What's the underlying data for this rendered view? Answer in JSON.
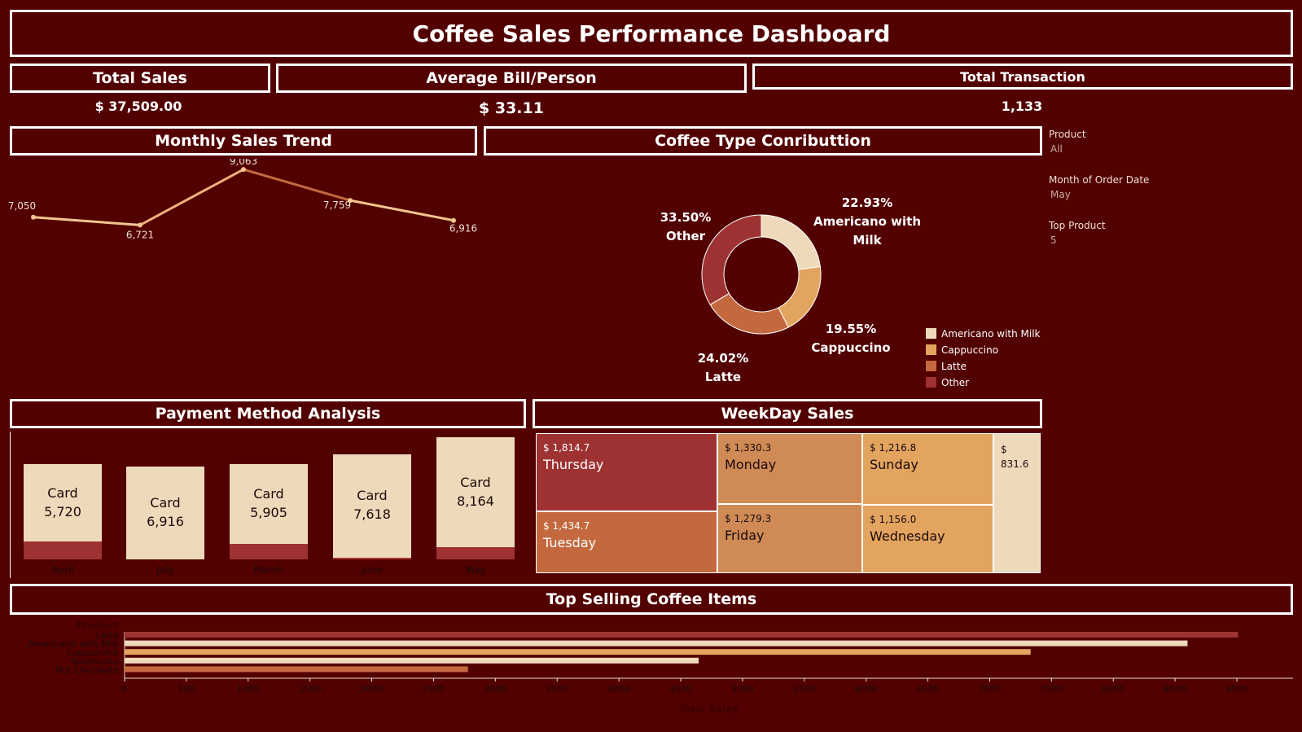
{
  "title": "Coffee Sales Performance Dashboard",
  "kpis": {
    "total_sales_label": "Total Sales",
    "total_sales_value": "$ 37,509.00",
    "avg_bill_label": "Average Bill/Person",
    "avg_bill_value": "$ 33.11",
    "total_txn_label": "Total Transaction",
    "total_txn_value": "1,133"
  },
  "filters": [
    {
      "label": "Product",
      "value": "All"
    },
    {
      "label": "Month of Order Date",
      "value": "May"
    },
    {
      "label": "Top Product",
      "value": "5"
    }
  ],
  "sections": {
    "monthly": "Monthly Sales Trend",
    "coffee_type": "Coffee Type Conributtion",
    "payment": "Payment Method Analysis",
    "weekday": "WeekDay Sales",
    "top_selling": "Top Selling Coffee Items"
  },
  "colors": {
    "background": "#520000",
    "americano_with_milk": "#efd9bb",
    "cappuccino": "#e3a45f",
    "latte": "#c4693f",
    "other": "#9e3232"
  },
  "chart_data": [
    {
      "type": "line",
      "name": "monthly-sales-trend",
      "title": "Monthly Sales Trend",
      "values": [
        7050,
        6721,
        9063,
        7759,
        6916
      ],
      "value_labels": [
        "7,050",
        "6,721",
        "9,063",
        "7,759",
        "6,916"
      ]
    },
    {
      "type": "pie",
      "name": "coffee-type-contribution",
      "title": "Coffee Type Conributtion",
      "slices": [
        {
          "name": "Americano with Milk",
          "value": 22.93,
          "label": "22.93%",
          "color": "#efd9bb"
        },
        {
          "name": "Cappuccino",
          "value": 19.55,
          "label": "19.55%",
          "color": "#e3a45f"
        },
        {
          "name": "Latte",
          "value": 24.02,
          "label": "24.02%",
          "color": "#c4693f"
        },
        {
          "name": "Other",
          "value": 33.5,
          "label": "33.50%",
          "color": "#9e3232"
        }
      ],
      "legend": [
        "Americano with Milk",
        "Cappuccino",
        "Latte",
        "Other"
      ]
    },
    {
      "type": "bar",
      "name": "payment-method-analysis",
      "title": "Payment Method Analysis",
      "categories": [
        "April",
        "July",
        "March",
        "June",
        "May"
      ],
      "card_label": "Card",
      "card_values": [
        5720,
        6916,
        5905,
        7618,
        8164
      ],
      "card_value_labels": [
        "5,720",
        "6,916",
        "5,905",
        "7,618",
        "8,164"
      ],
      "other_values": [
        1330,
        0,
        1150,
        150,
        899
      ]
    },
    {
      "type": "heatmap",
      "name": "weekday-sales",
      "title": "WeekDay Sales",
      "cells": [
        {
          "day": "Thursday",
          "value": "$ 1,814.7",
          "color": "#9e3232"
        },
        {
          "day": "Tuesday",
          "value": "$ 1,434.7",
          "color": "#c4693f"
        },
        {
          "day": "Monday",
          "value": "$ 1,330.3",
          "color": "#d08a55"
        },
        {
          "day": "Friday",
          "value": "$ 1,279.3",
          "color": "#d08a55"
        },
        {
          "day": "Sunday",
          "value": "$ 1,216.8",
          "color": "#e3a45f"
        },
        {
          "day": "Wednesday",
          "value": "$ 1,156.0",
          "color": "#e3a45f"
        },
        {
          "day": "",
          "value": "$ 831.6",
          "color": "#efd9bb"
        }
      ]
    },
    {
      "type": "bar",
      "name": "top-selling-coffee-items",
      "title": "Top Selling Coffee Items",
      "orientation": "horizontal",
      "ylabel": "Product",
      "xlabel": "Total Sales",
      "categories": [
        "Latte",
        "Americano with Milk",
        "Cappuccino",
        "Americano",
        "Hot Chocolate"
      ],
      "values": [
        9009,
        8601,
        7331,
        4645,
        2778
      ],
      "colors": [
        "#9e3232",
        "#efd9bb",
        "#e3a45f",
        "#efd9bb",
        "#c4693f"
      ],
      "xlim": [
        0,
        9500
      ],
      "xticks": [
        0,
        500,
        1000,
        1500,
        2000,
        2500,
        3000,
        3500,
        4000,
        4500,
        5000,
        5500,
        6000,
        6500,
        7000,
        7500,
        8000,
        8500,
        9000
      ]
    }
  ]
}
